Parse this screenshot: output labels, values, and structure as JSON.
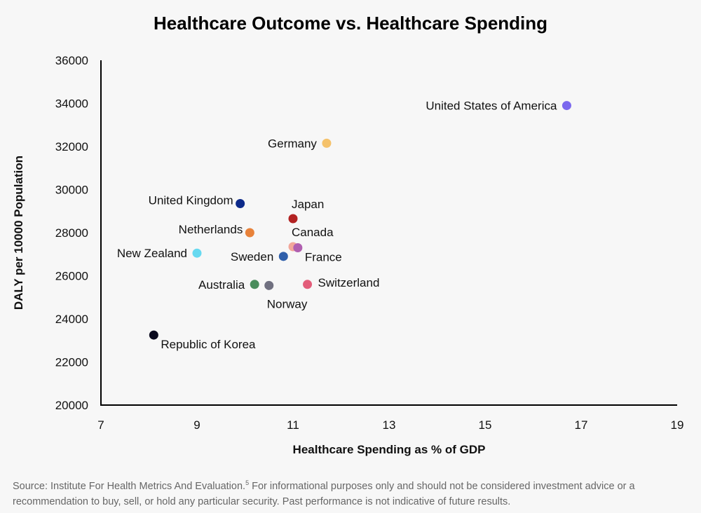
{
  "chart_data": {
    "type": "scatter",
    "title": "Healthcare Outcome vs. Healthcare Spending",
    "xlabel": "Healthcare Spending as % of GDP",
    "ylabel": "DALY per 10000 Population",
    "xlim": [
      7,
      19
    ],
    "ylim": [
      20000,
      36000
    ],
    "xticks": [
      7,
      9,
      11,
      13,
      15,
      17,
      19
    ],
    "yticks": [
      20000,
      22000,
      24000,
      26000,
      28000,
      30000,
      32000,
      34000,
      36000
    ],
    "grid": false,
    "points": [
      {
        "label": "United States of America",
        "x": 16.7,
        "y": 33900,
        "color": "#7b68ee",
        "label_pos": "left"
      },
      {
        "label": "Germany",
        "x": 11.7,
        "y": 32150,
        "color": "#f5c26b",
        "label_pos": "left"
      },
      {
        "label": "United Kingdom",
        "x": 9.9,
        "y": 29350,
        "color": "#0d2a8a",
        "label_pos": "upper-left"
      },
      {
        "label": "Japan",
        "x": 11.0,
        "y": 28650,
        "color": "#b22222",
        "label_pos": "above-right"
      },
      {
        "label": "Netherlands",
        "x": 10.1,
        "y": 28000,
        "color": "#e8823a",
        "label_pos": "upper-left"
      },
      {
        "label": "Canada",
        "x": 11.0,
        "y": 27350,
        "color": "#f2a79a",
        "label_pos": "above-right"
      },
      {
        "label": "France",
        "x": 11.1,
        "y": 27300,
        "color": "#b05fb0",
        "label_pos": "below-right"
      },
      {
        "label": "New Zealand",
        "x": 9.0,
        "y": 27050,
        "color": "#66d9f0",
        "label_pos": "left"
      },
      {
        "label": "Sweden",
        "x": 10.8,
        "y": 26900,
        "color": "#2f5faa",
        "label_pos": "left"
      },
      {
        "label": "Australia",
        "x": 10.2,
        "y": 25600,
        "color": "#4a8c5c",
        "label_pos": "left"
      },
      {
        "label": "Norway",
        "x": 10.5,
        "y": 25550,
        "color": "#707080",
        "label_pos": "below"
      },
      {
        "label": "Switzerland",
        "x": 11.3,
        "y": 25600,
        "color": "#e35d7a",
        "label_pos": "upper-right"
      },
      {
        "label": "Republic of Korea",
        "x": 8.1,
        "y": 23250,
        "color": "#0a0a1e",
        "label_pos": "below-right"
      }
    ]
  },
  "source": {
    "prefix": "Source:  Institute For Health Metrics And Evaluation.",
    "footnote": "5",
    "text": " For informational purposes only and should not be considered investment advice or a recommendation to buy, sell, or hold any particular security. Past performance is not indicative of future results."
  }
}
